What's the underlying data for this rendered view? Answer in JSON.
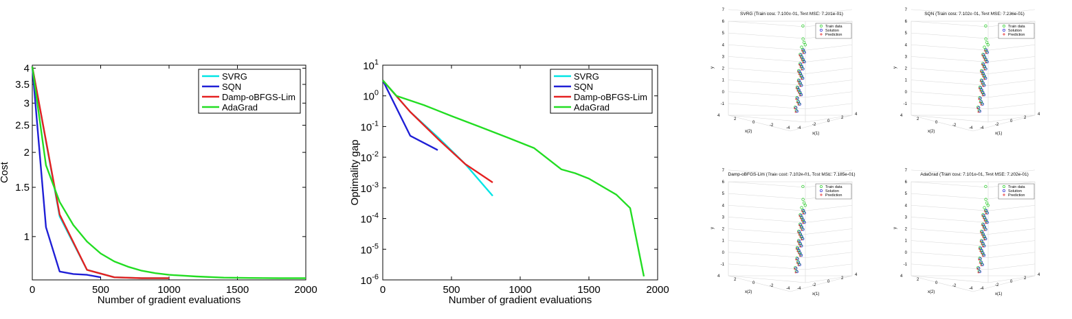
{
  "chart_data": [
    {
      "type": "line",
      "xlabel": "Number of gradient evaluations",
      "ylabel": "Cost",
      "xlim": [
        0,
        2000
      ],
      "ylim": [
        0.7,
        4.1
      ],
      "yscale": "log",
      "xticks": [
        "0",
        "500",
        "1000",
        "1500",
        "2000"
      ],
      "yticks": [
        {
          "value": 1,
          "label": "1"
        },
        {
          "value": 1.5,
          "label": "1.5"
        },
        {
          "value": 2,
          "label": "2"
        },
        {
          "value": 2.5,
          "label": "2.5"
        },
        {
          "value": 3,
          "label": "3"
        },
        {
          "value": 3.5,
          "label": "3.5"
        },
        {
          "value": 4,
          "label": "4"
        }
      ],
      "legend_position": "top-right",
      "series": [
        {
          "name": "SVRG",
          "color": "#00e5e5",
          "x": [
            0,
            200,
            400,
            600,
            800,
            1000
          ],
          "y": [
            4.05,
            1.18,
            0.76,
            0.715,
            0.71,
            0.71
          ]
        },
        {
          "name": "SQN",
          "color": "#1f1fd6",
          "x": [
            0,
            100,
            200,
            300,
            400,
            500
          ],
          "y": [
            4.05,
            1.08,
            0.75,
            0.735,
            0.73,
            0.715
          ]
        },
        {
          "name": "Damp-oBFGS-Lim",
          "color": "#e52020",
          "x": [
            0,
            200,
            400,
            600,
            800,
            1000
          ],
          "y": [
            4.05,
            1.2,
            0.76,
            0.715,
            0.71,
            0.71
          ]
        },
        {
          "name": "AdaGrad",
          "color": "#22dd22",
          "x": [
            0,
            100,
            200,
            300,
            400,
            500,
            600,
            700,
            800,
            900,
            1000,
            1200,
            1400,
            1600,
            1800,
            2000
          ],
          "y": [
            4.05,
            1.8,
            1.33,
            1.1,
            0.96,
            0.87,
            0.815,
            0.78,
            0.755,
            0.74,
            0.73,
            0.72,
            0.713,
            0.711,
            0.71,
            0.71
          ]
        }
      ]
    },
    {
      "type": "line",
      "xlabel": "Number of gradient evaluations",
      "ylabel": "Optimality gap",
      "xlim": [
        0,
        2000
      ],
      "ylim": [
        1e-06,
        10
      ],
      "yscale": "log",
      "xticks": [
        "0",
        "500",
        "1000",
        "1500",
        "2000"
      ],
      "yticks": [
        {
          "value": 1e-06,
          "base": "10",
          "exp": "-6"
        },
        {
          "value": 1e-05,
          "base": "10",
          "exp": "-5"
        },
        {
          "value": 0.0001,
          "base": "10",
          "exp": "-4"
        },
        {
          "value": 0.001,
          "base": "10",
          "exp": "-3"
        },
        {
          "value": 0.01,
          "base": "10",
          "exp": "-2"
        },
        {
          "value": 0.1,
          "base": "10",
          "exp": "-1"
        },
        {
          "value": 1,
          "base": "10",
          "exp": "0"
        },
        {
          "value": 10,
          "base": "10",
          "exp": "1"
        }
      ],
      "legend_position": "top-right",
      "series": [
        {
          "name": "SVRG",
          "color": "#00e5e5",
          "x": [
            0,
            200,
            400,
            600,
            800
          ],
          "y": [
            3.2,
            0.3,
            0.045,
            0.006,
            0.00055
          ]
        },
        {
          "name": "SQN",
          "color": "#1f1fd6",
          "x": [
            0,
            200,
            400
          ],
          "y": [
            3.2,
            0.05,
            0.017
          ]
        },
        {
          "name": "Damp-oBFGS-Lim",
          "color": "#e52020",
          "x": [
            0,
            200,
            400,
            600,
            800
          ],
          "y": [
            3.2,
            0.3,
            0.04,
            0.006,
            0.0015
          ]
        },
        {
          "name": "AdaGrad",
          "color": "#22dd22",
          "x": [
            0,
            100,
            300,
            500,
            700,
            900,
            1100,
            1300,
            1400,
            1500,
            1700,
            1800,
            1900
          ],
          "y": [
            3.2,
            1.0,
            0.5,
            0.22,
            0.1,
            0.045,
            0.02,
            0.004,
            0.003,
            0.002,
            0.0006,
            0.00022,
            1.3e-06
          ]
        }
      ]
    },
    {
      "type": "scatter",
      "title": "SVRG (Train cost: 7.100e-01, Test MSE: 7.201e-01)",
      "xlabel": "x(1)",
      "ylabel": "y",
      "zlabel": "x(2)",
      "yticks": [
        "-1",
        "0",
        "1",
        "2",
        "3",
        "4",
        "5",
        "6",
        "7"
      ],
      "legend": [
        "Train data",
        "Solution",
        "Prediction"
      ],
      "legend_colors": [
        "#22cc22",
        "#1f1fd6",
        "#e52020"
      ],
      "y_values": [
        6.6,
        5.5,
        5.2,
        5.0,
        4.8,
        4.6,
        4.4,
        4.2,
        4.0,
        3.8,
        3.6,
        3.4,
        3.2,
        3.0,
        2.8,
        2.6,
        2.4,
        2.2,
        2.0,
        1.8,
        1.6,
        1.4,
        1.2,
        1.0,
        0.8,
        0.5,
        0.2,
        0.0,
        -0.3,
        -0.6
      ]
    },
    {
      "type": "scatter",
      "title": "SQN (Train cost: 7.102e-01, Test MSE: 7.236e-01)",
      "xlabel": "x(1)",
      "ylabel": "y",
      "zlabel": "x(2)",
      "yticks": [
        "-1",
        "0",
        "1",
        "2",
        "3",
        "4",
        "5",
        "6",
        "7"
      ],
      "legend": [
        "Train data",
        "Solution",
        "Prediction"
      ],
      "legend_colors": [
        "#22cc22",
        "#1f1fd6",
        "#e52020"
      ],
      "y_values": [
        6.6,
        5.5,
        5.2,
        5.0,
        4.8,
        4.6,
        4.4,
        4.2,
        4.0,
        3.8,
        3.6,
        3.4,
        3.2,
        3.0,
        2.8,
        2.6,
        2.4,
        2.2,
        2.0,
        1.8,
        1.6,
        1.4,
        1.2,
        1.0,
        0.8,
        0.5,
        0.2,
        0.0,
        -0.3,
        -0.6
      ]
    },
    {
      "type": "scatter",
      "title": "Damp-oBFGS-Lim (Train cost: 7.102e-01, Test MSE: 7.185e-01)",
      "xlabel": "x(1)",
      "ylabel": "y",
      "zlabel": "x(2)",
      "yticks": [
        "-1",
        "0",
        "1",
        "2",
        "3",
        "4",
        "5",
        "6",
        "7"
      ],
      "legend": [
        "Train data",
        "Solution",
        "Prediction"
      ],
      "legend_colors": [
        "#22cc22",
        "#1f1fd6",
        "#e52020"
      ],
      "y_values": [
        6.6,
        5.5,
        5.2,
        5.0,
        4.8,
        4.6,
        4.4,
        4.2,
        4.0,
        3.8,
        3.6,
        3.4,
        3.2,
        3.0,
        2.8,
        2.6,
        2.4,
        2.2,
        2.0,
        1.8,
        1.6,
        1.4,
        1.2,
        1.0,
        0.8,
        0.5,
        0.2,
        0.0,
        -0.3,
        -0.6
      ]
    },
    {
      "type": "scatter",
      "title": "AdaGrad (Train cost: 7.101e-01, Test MSE: 7.202e-01)",
      "xlabel": "x(1)",
      "ylabel": "y",
      "zlabel": "x(2)",
      "yticks": [
        "-1",
        "0",
        "1",
        "2",
        "3",
        "4",
        "5",
        "6",
        "7"
      ],
      "legend": [
        "Train data",
        "Solution",
        "Prediction"
      ],
      "legend_colors": [
        "#22cc22",
        "#1f1fd6",
        "#e52020"
      ],
      "y_values": [
        6.6,
        5.5,
        5.2,
        5.0,
        4.8,
        4.6,
        4.4,
        4.2,
        4.0,
        3.8,
        3.6,
        3.4,
        3.2,
        3.0,
        2.8,
        2.6,
        2.4,
        2.2,
        2.0,
        1.8,
        1.6,
        1.4,
        1.2,
        1.0,
        0.8,
        0.5,
        0.2,
        0.0,
        -0.3,
        -0.6
      ]
    }
  ]
}
